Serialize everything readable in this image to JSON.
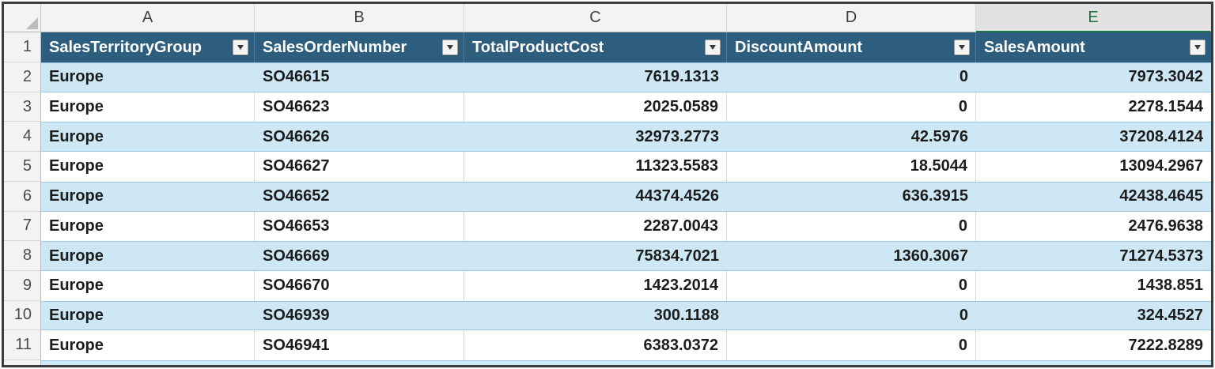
{
  "app": {
    "type": "spreadsheet-worksheet"
  },
  "colors": {
    "table_header_fill": "#2E5E7D",
    "table_header_text": "#FFFFFF",
    "band_fill": "#CDE7F5",
    "band_line": "#9CC6DF",
    "gridline": "#DADADA",
    "gutter_fill": "#F3F3F3",
    "gutter_border": "#B9B9B9",
    "selected_column_fill": "#E2E2E2",
    "selected_column_green": "#1E7145",
    "frame_border": "#3B3B3B",
    "cell_text": "#1C1C1C"
  },
  "column_letters": [
    "A",
    "B",
    "C",
    "D",
    "E"
  ],
  "selected_column": "E",
  "header_row_number": "1",
  "fields": [
    "SalesTerritoryGroup",
    "SalesOrderNumber",
    "TotalProductCost",
    "DiscountAmount",
    "SalesAmount"
  ],
  "field_alignments": [
    "txt",
    "txt",
    "num",
    "num",
    "num"
  ],
  "filter_icon": "chevron-down-icon",
  "rows": [
    {
      "n": "2",
      "banded": true,
      "cells": [
        "Europe",
        "SO46615",
        "7619.1313",
        "0",
        "7973.3042"
      ]
    },
    {
      "n": "3",
      "banded": false,
      "cells": [
        "Europe",
        "SO46623",
        "2025.0589",
        "0",
        "2278.1544"
      ]
    },
    {
      "n": "4",
      "banded": true,
      "cells": [
        "Europe",
        "SO46626",
        "32973.2773",
        "42.5976",
        "37208.4124"
      ]
    },
    {
      "n": "5",
      "banded": false,
      "cells": [
        "Europe",
        "SO46627",
        "11323.5583",
        "18.5044",
        "13094.2967"
      ]
    },
    {
      "n": "6",
      "banded": true,
      "cells": [
        "Europe",
        "SO46652",
        "44374.4526",
        "636.3915",
        "42438.4645"
      ]
    },
    {
      "n": "7",
      "banded": false,
      "cells": [
        "Europe",
        "SO46653",
        "2287.0043",
        "0",
        "2476.9638"
      ]
    },
    {
      "n": "8",
      "banded": true,
      "cells": [
        "Europe",
        "SO46669",
        "75834.7021",
        "1360.3067",
        "71274.5373"
      ]
    },
    {
      "n": "9",
      "banded": false,
      "cells": [
        "Europe",
        "SO46670",
        "1423.2014",
        "0",
        "1438.851"
      ]
    },
    {
      "n": "10",
      "banded": true,
      "cells": [
        "Europe",
        "SO46939",
        "300.1188",
        "0",
        "324.4527"
      ]
    },
    {
      "n": "11",
      "banded": false,
      "cells": [
        "Europe",
        "SO46941",
        "6383.0372",
        "0",
        "7222.8289"
      ]
    }
  ]
}
